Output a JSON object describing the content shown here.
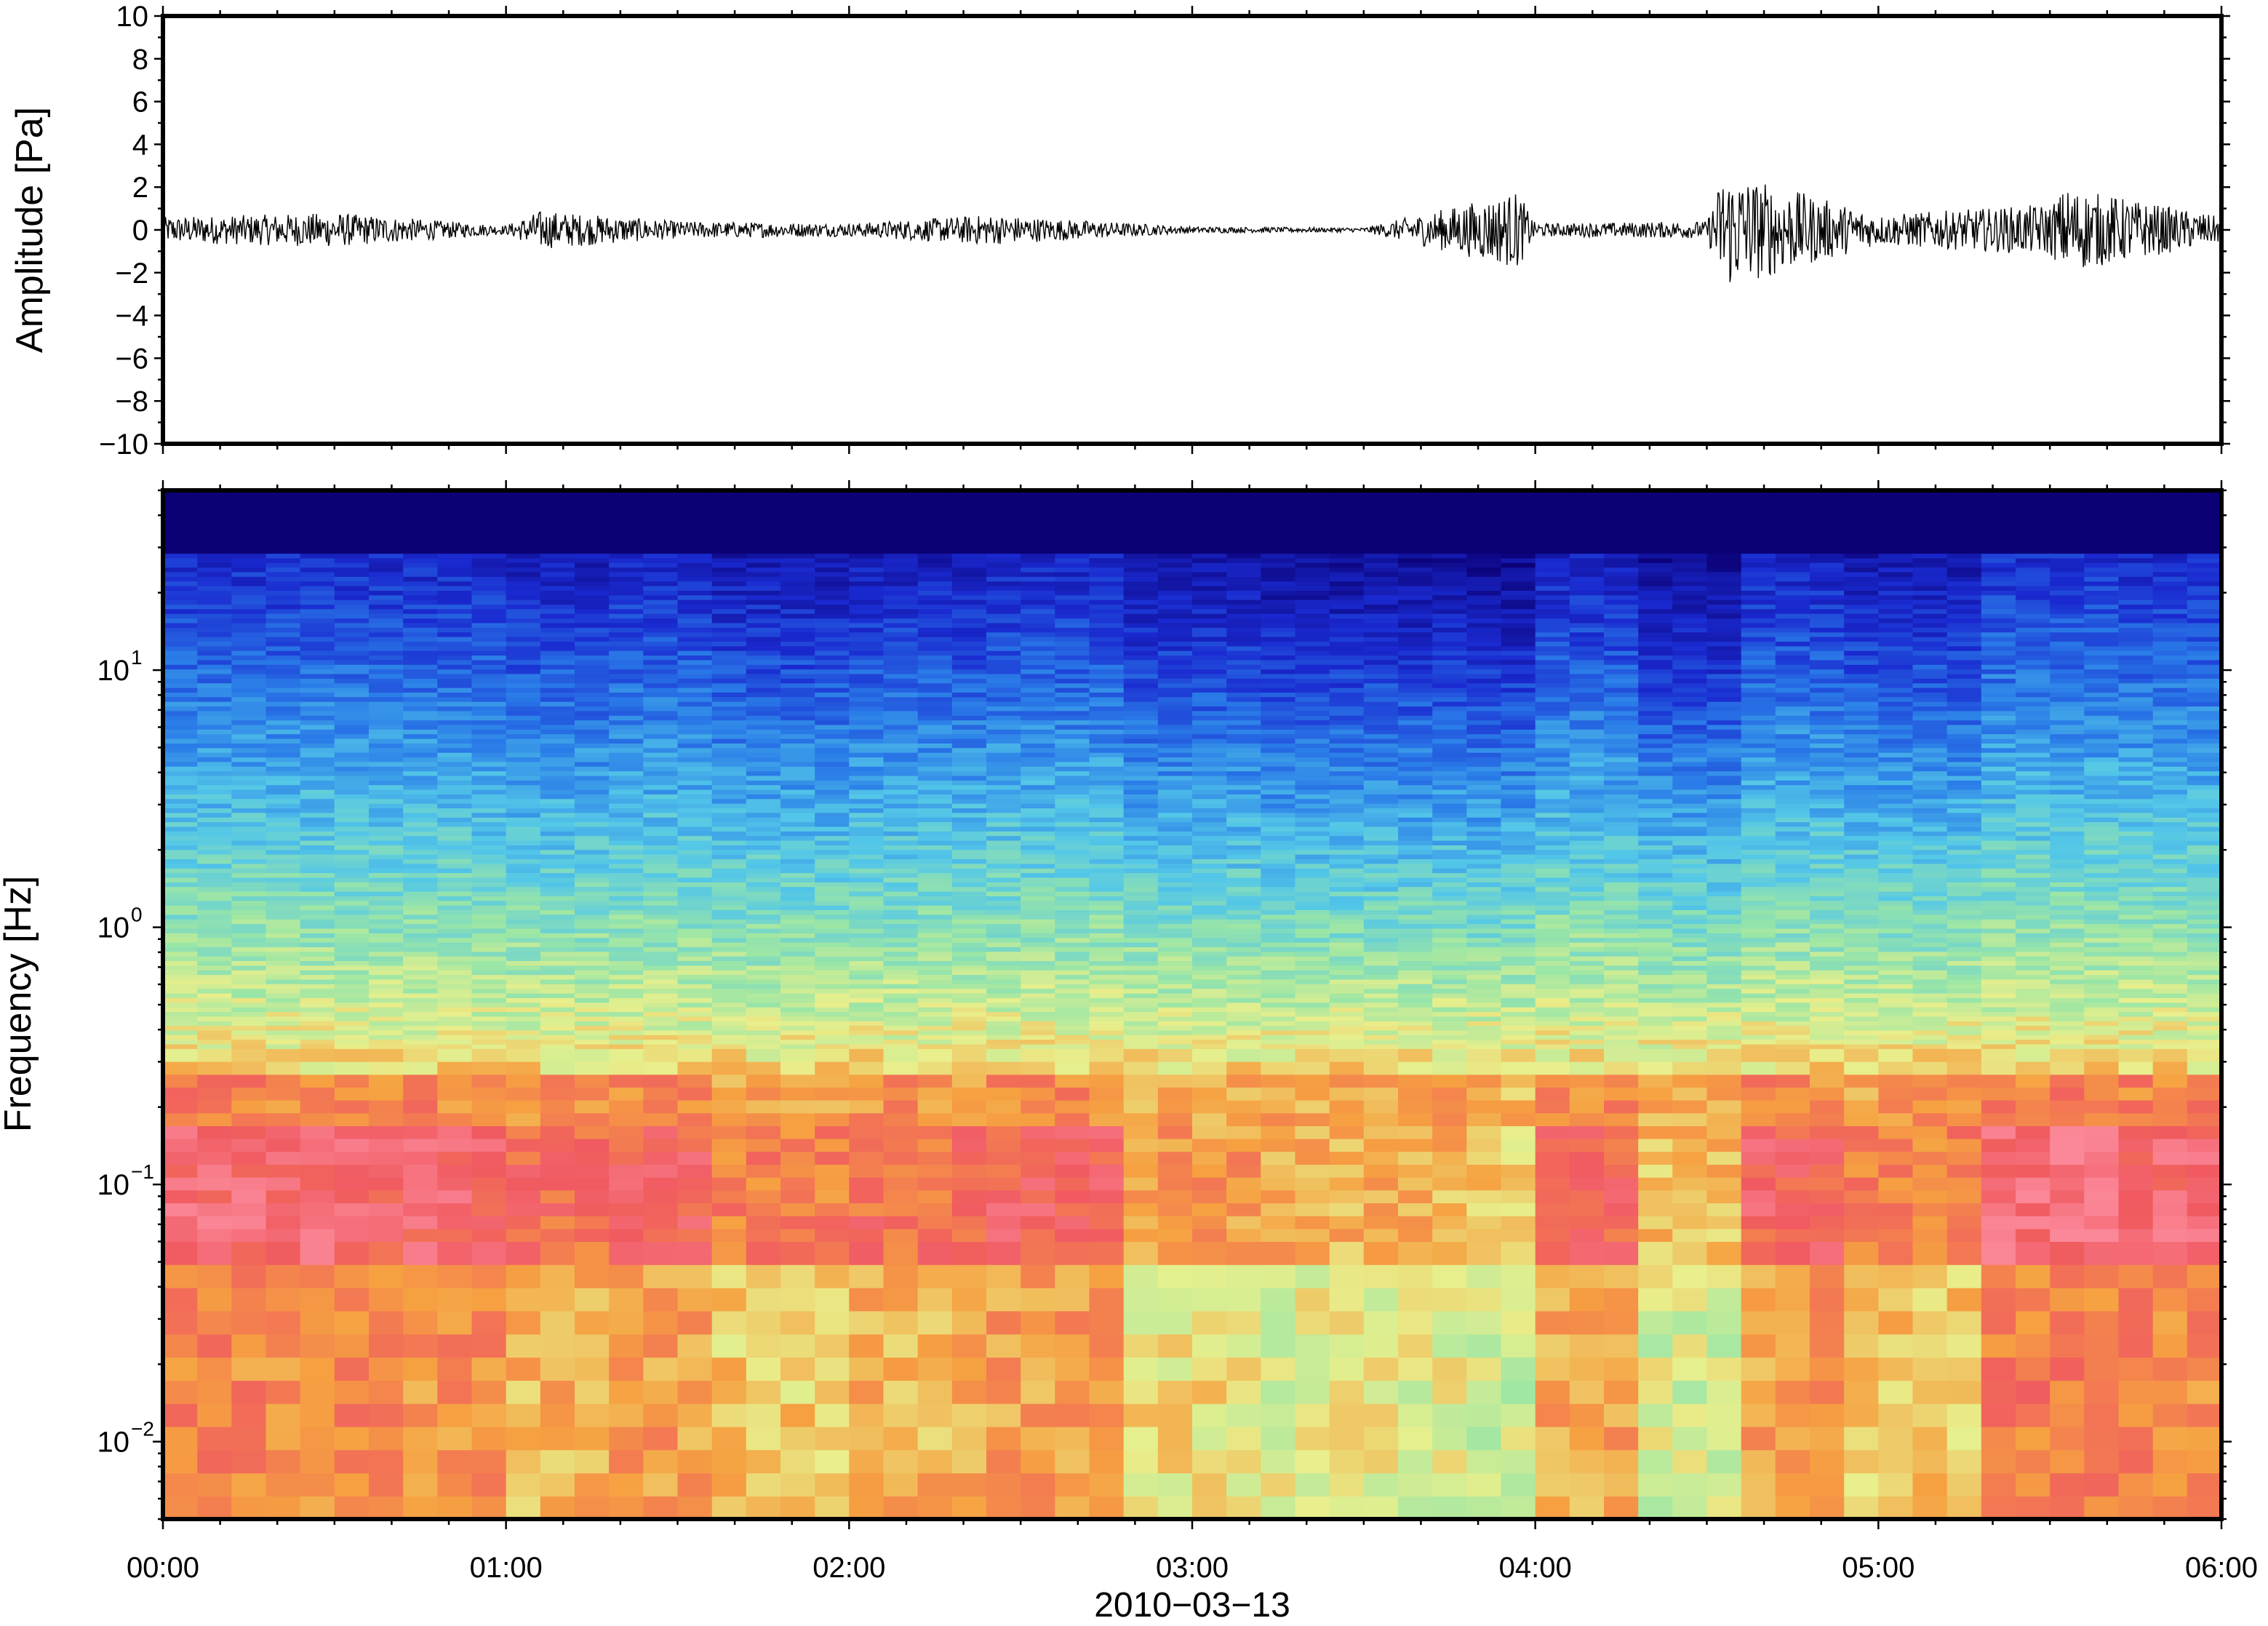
{
  "chart_data": [
    {
      "type": "line",
      "panel": "waveform",
      "ylabel": "Amplitude [Pa]",
      "ylim": [
        -10,
        10
      ],
      "yticks": [
        "10",
        "8",
        "6",
        "4",
        "2",
        "0",
        "−2",
        "−4",
        "−6",
        "−8",
        "−10"
      ],
      "ytick_values": [
        10,
        8,
        6,
        4,
        2,
        0,
        -2,
        -4,
        -6,
        -8,
        -10
      ],
      "xlim_hours": [
        0,
        6
      ],
      "series": [
        {
          "x_hours": [
            0,
            0.5,
            1.0,
            1.1,
            1.5,
            2.0,
            2.4,
            3.0,
            3.5,
            3.95,
            4.0,
            4.5,
            4.55,
            5.0,
            5.5,
            5.55,
            6.0
          ],
          "envelope_pa": [
            0.6,
            0.8,
            0.2,
            0.9,
            0.4,
            0.3,
            0.7,
            0.15,
            0.1,
            1.8,
            0.3,
            0.4,
            2.8,
            0.7,
            1.2,
            2.0,
            0.6
          ]
        }
      ],
      "line_color": "#000000"
    },
    {
      "type": "heatmap",
      "panel": "spectrogram",
      "ylabel": "Frequency [Hz]",
      "yscale": "log",
      "ylim_hz": [
        0.005,
        50
      ],
      "yticks": [
        {
          "base": "10",
          "exp": "−2",
          "value": 0.01
        },
        {
          "base": "10",
          "exp": "−1",
          "value": 0.1
        },
        {
          "base": "10",
          "exp": "0",
          "value": 1
        },
        {
          "base": "10",
          "exp": "1",
          "value": 10
        }
      ],
      "xlabel": "2010−03−13",
      "xticks": [
        "00:00",
        "01:00",
        "02:00",
        "03:00",
        "04:00",
        "05:00",
        "06:00"
      ],
      "xtick_hours": [
        0,
        1,
        2,
        3,
        4,
        5,
        6
      ],
      "colormap": "rainbow",
      "colors": {
        "low": "#0b0075",
        "mid_low": "#2a7ce8",
        "mid": "#9be6a6",
        "mid_high": "#f6a141",
        "high": "#f05a60",
        "peak": "#fb8899"
      },
      "time_segments_hours": [
        0,
        0.6,
        1.0,
        1.3,
        1.6,
        2.0,
        2.4,
        2.8,
        3.2,
        3.8,
        4.05,
        4.3,
        4.6,
        4.9,
        5.3,
        5.7,
        6.0
      ],
      "activity_level": [
        0.9,
        0.85,
        0.7,
        0.8,
        0.6,
        0.7,
        0.8,
        0.5,
        0.4,
        0.3,
        0.75,
        0.35,
        0.8,
        0.6,
        0.95,
        0.9
      ]
    }
  ]
}
